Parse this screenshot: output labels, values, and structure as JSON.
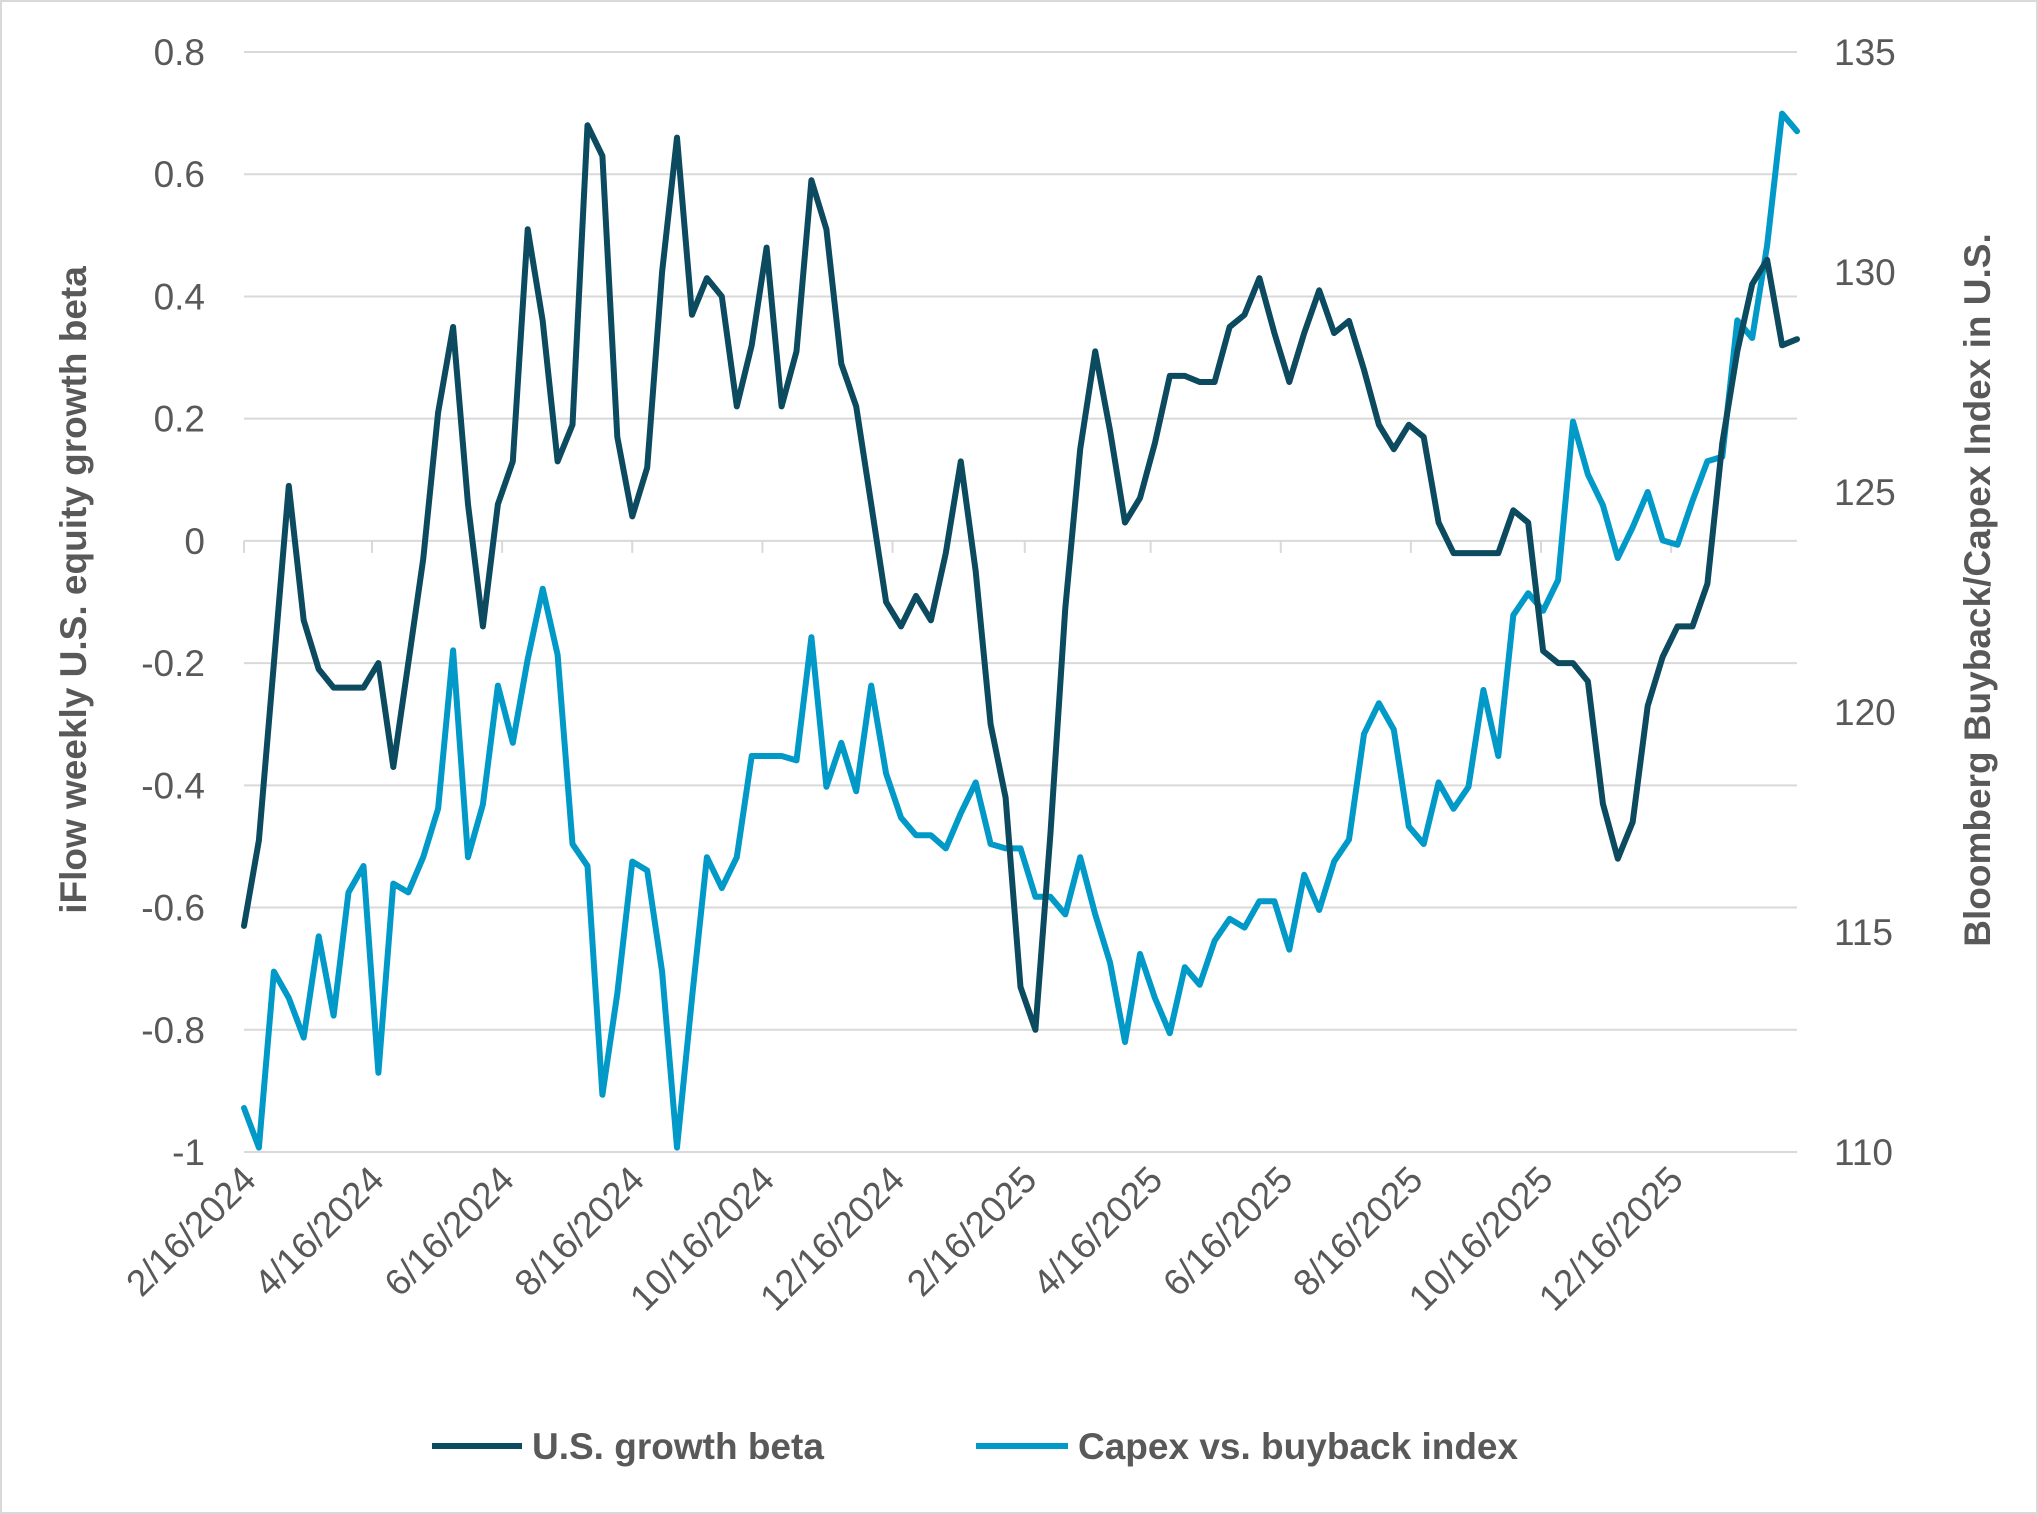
{
  "chart_data": {
    "type": "line",
    "title": "",
    "ylabel_left": "iFlow weekly U.S. equity growth beta",
    "ylabel_right": "Bloomberg Buyback/Capex Index in U.S.",
    "xlabel": "",
    "ylim_left": [
      -1,
      0.8
    ],
    "ylim_right": [
      110,
      135
    ],
    "yticks_left": [
      "0.8",
      "0.6",
      "0.4",
      "0.2",
      "0",
      "-0.2",
      "-0.4",
      "-0.6",
      "-0.8",
      "-1"
    ],
    "yticks_left_values": [
      0.8,
      0.6,
      0.4,
      0.2,
      0,
      -0.2,
      -0.4,
      -0.6,
      -0.8,
      -1
    ],
    "yticks_right": [
      "135",
      "130",
      "125",
      "120",
      "115",
      "110"
    ],
    "xticks": [
      "2/16/2024",
      "4/16/2024",
      "6/16/2024",
      "8/16/2024",
      "10/16/2024",
      "12/16/2024",
      "2/16/2025",
      "4/16/2025",
      "6/16/2025",
      "8/16/2025",
      "10/16/2025",
      "12/16/2025"
    ],
    "grid": true,
    "legend_position": "bottom",
    "x": [
      "2024-02-16",
      "2024-02-23",
      "2024-03-01",
      "2024-03-08",
      "2024-03-15",
      "2024-03-22",
      "2024-03-29",
      "2024-04-05",
      "2024-04-12",
      "2024-04-19",
      "2024-04-26",
      "2024-05-03",
      "2024-05-10",
      "2024-05-17",
      "2024-05-24",
      "2024-05-31",
      "2024-06-07",
      "2024-06-14",
      "2024-06-21",
      "2024-06-28",
      "2024-07-05",
      "2024-07-12",
      "2024-07-19",
      "2024-07-26",
      "2024-08-02",
      "2024-08-09",
      "2024-08-16",
      "2024-08-23",
      "2024-08-30",
      "2024-09-06",
      "2024-09-13",
      "2024-09-20",
      "2024-09-27",
      "2024-10-04",
      "2024-10-11",
      "2024-10-18",
      "2024-10-25",
      "2024-11-01",
      "2024-11-08",
      "2024-11-15",
      "2024-11-22",
      "2024-11-29",
      "2024-12-06",
      "2024-12-13",
      "2024-12-20",
      "2024-12-27",
      "2025-01-03",
      "2025-01-10",
      "2025-01-17",
      "2025-01-24",
      "2025-01-31",
      "2025-02-07",
      "2025-02-14",
      "2025-02-21",
      "2025-02-28",
      "2025-03-07",
      "2025-03-14",
      "2025-03-21",
      "2025-03-28",
      "2025-04-04",
      "2025-04-11",
      "2025-04-18",
      "2025-04-25",
      "2025-05-02",
      "2025-05-09",
      "2025-05-16",
      "2025-05-23",
      "2025-05-30",
      "2025-06-06",
      "2025-06-13",
      "2025-06-20",
      "2025-06-27",
      "2025-07-04",
      "2025-07-11",
      "2025-07-18",
      "2025-07-25",
      "2025-08-01",
      "2025-08-08",
      "2025-08-15",
      "2025-08-22",
      "2025-08-29",
      "2025-09-05",
      "2025-09-12",
      "2025-09-19",
      "2025-09-26",
      "2025-10-03",
      "2025-10-10",
      "2025-10-17",
      "2025-10-24",
      "2025-10-31",
      "2025-11-07",
      "2025-11-14",
      "2025-11-21",
      "2025-11-28",
      "2025-12-05",
      "2025-12-12",
      "2025-12-19",
      "2025-12-26",
      "2026-01-02",
      "2026-01-09",
      "2026-01-16",
      "2026-01-23",
      "2026-01-30",
      "2026-02-06",
      "2026-02-13"
    ],
    "series": [
      {
        "name": "U.S. growth beta",
        "axis": "left",
        "color": "#0b4a5f",
        "values": [
          -0.63,
          -0.49,
          -0.2,
          0.09,
          -0.13,
          -0.21,
          -0.24,
          -0.24,
          -0.24,
          -0.2,
          -0.37,
          -0.2,
          -0.03,
          0.21,
          0.35,
          0.06,
          -0.14,
          0.06,
          0.13,
          0.51,
          0.36,
          0.13,
          0.19,
          0.68,
          0.63,
          0.17,
          0.04,
          0.12,
          0.44,
          0.66,
          0.37,
          0.43,
          0.4,
          0.22,
          0.32,
          0.48,
          0.22,
          0.31,
          0.59,
          0.51,
          0.29,
          0.22,
          0.06,
          -0.1,
          -0.14,
          -0.09,
          -0.13,
          -0.02,
          0.13,
          -0.05,
          -0.3,
          -0.42,
          -0.73,
          -0.8,
          -0.48,
          -0.11,
          0.15,
          0.31,
          0.18,
          0.03,
          0.07,
          0.16,
          0.27,
          0.27,
          0.26,
          0.26,
          0.35,
          0.37,
          0.43,
          0.34,
          0.26,
          0.34,
          0.41,
          0.34,
          0.36,
          0.28,
          0.19,
          0.15,
          0.19,
          0.17,
          0.03,
          -0.02,
          -0.02,
          -0.02,
          -0.02,
          0.05,
          0.03,
          -0.18,
          -0.2,
          -0.2,
          -0.23,
          -0.43,
          -0.52,
          -0.46,
          -0.27,
          -0.19,
          -0.14,
          -0.14,
          -0.07,
          0.16,
          0.31,
          0.42,
          0.46,
          0.32,
          0.33
        ]
      },
      {
        "name": "Capex vs. buyback index",
        "axis": "right",
        "color": "#0099c8",
        "values": [
          111.0,
          110.1,
          114.1,
          113.5,
          112.6,
          114.9,
          113.1,
          115.9,
          116.5,
          111.8,
          116.1,
          115.9,
          116.7,
          117.8,
          121.4,
          116.7,
          117.9,
          120.6,
          119.3,
          121.2,
          122.8,
          121.3,
          117.0,
          116.5,
          111.3,
          113.6,
          116.6,
          116.4,
          114.1,
          110.1,
          113.5,
          116.7,
          116.0,
          116.7,
          119.0,
          119.0,
          119.0,
          118.9,
          121.7,
          118.3,
          119.3,
          118.2,
          120.6,
          118.6,
          117.6,
          117.2,
          117.2,
          116.9,
          117.7,
          118.4,
          117.0,
          116.9,
          116.9,
          115.8,
          115.8,
          115.4,
          116.7,
          115.4,
          114.3,
          112.5,
          114.5,
          113.5,
          112.7,
          114.2,
          113.8,
          114.8,
          115.3,
          115.1,
          115.7,
          115.7,
          114.6,
          116.3,
          115.5,
          116.6,
          117.1,
          119.5,
          120.2,
          119.6,
          117.4,
          117.0,
          118.4,
          117.8,
          118.3,
          120.5,
          119.0,
          122.2,
          122.7,
          122.3,
          123.0,
          126.6,
          125.4,
          124.7,
          123.5,
          124.2,
          125.0,
          123.9,
          123.8,
          124.8,
          125.7,
          125.8,
          128.9,
          128.5,
          130.6,
          133.6,
          133.2
        ]
      }
    ]
  }
}
